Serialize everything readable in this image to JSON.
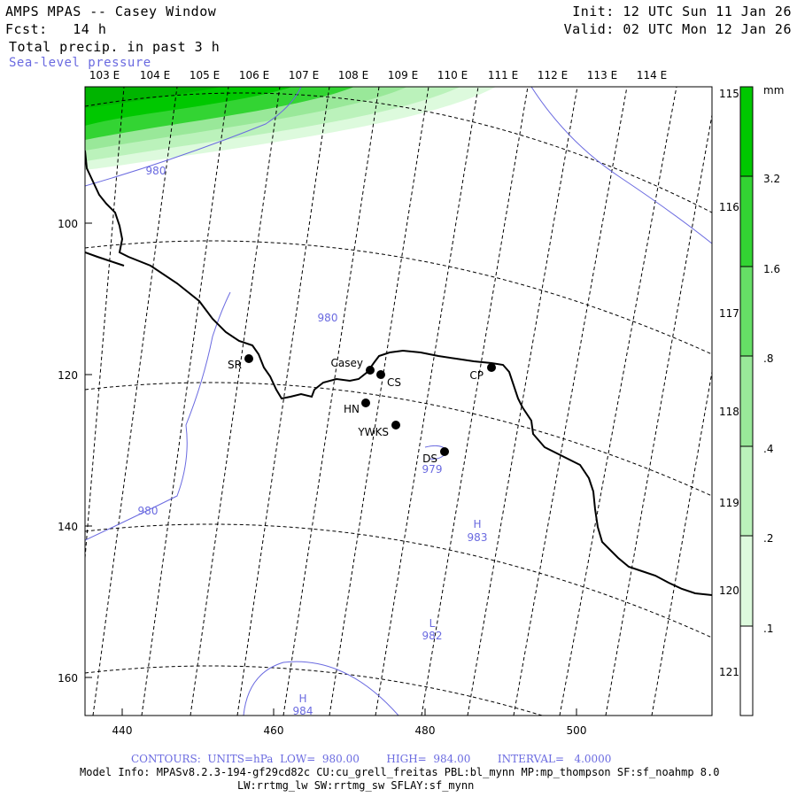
{
  "header": {
    "title": "AMPS MPAS -- Casey Window",
    "forecast": "Fcst:   14 h",
    "field": "Total precip. in past 3 h",
    "overlay": "Sea-level pressure",
    "init": "Init: 12 UTC Sun 11 Jan 26",
    "valid": "Valid: 02 UTC Mon 12 Jan 26"
  },
  "top_lon_labels": [
    "103 E",
    "104 E",
    "105 E",
    "106 E",
    "107 E",
    "108 E",
    "109 E",
    "110 E",
    "111 E",
    "112 E",
    "113 E",
    "114 E"
  ],
  "right_lon_labels": [
    "115 E",
    "116 E",
    "117 E",
    "118 E",
    "119 E",
    "120 E",
    "121 E"
  ],
  "x_ticks": [
    "440",
    "460",
    "480",
    "500"
  ],
  "y_ticks": [
    "100",
    "120",
    "140",
    "160"
  ],
  "stations": [
    {
      "name": "SR"
    },
    {
      "name": "Casey"
    },
    {
      "name": "CS"
    },
    {
      "name": "CP"
    },
    {
      "name": "HN"
    },
    {
      "name": "YWKS"
    },
    {
      "name": "DS"
    }
  ],
  "pressure_labels": [
    "980",
    "980",
    "980",
    "979",
    "983",
    "982",
    "984"
  ],
  "pressure_centers": [
    "H",
    "L",
    "H"
  ],
  "colorbar": {
    "unit": "mm",
    "labels": [
      "3.2",
      "1.6",
      ".8",
      ".4",
      ".2",
      ".1"
    ],
    "colors": [
      "#00c800",
      "#33d433",
      "#66de66",
      "#99e899",
      "#bbf2bb",
      "#ddfadd",
      "#ffffff"
    ]
  },
  "footer": {
    "contours": "CONTOURS:  UNITS=hPa  LOW=  980.00        HIGH=  984.00        INTERVAL=   4.0000",
    "model_info": "Model Info: MPASv8.2.3-194-gf29cd82c CU:cu_grell_freitas PBL:bl_mynn MP:mp_thompson SF:sf_noahmp 8.0",
    "model_info2": "LW:rrtmg_lw SW:rrtmg_sw SFLAY:sf_mynn"
  }
}
